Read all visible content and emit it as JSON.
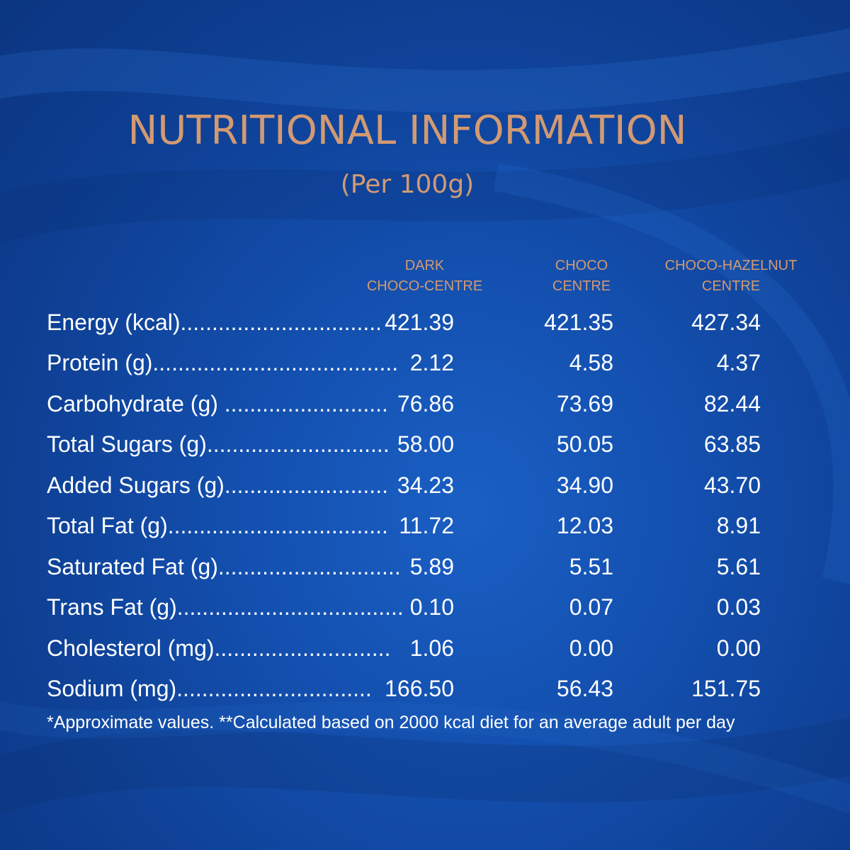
{
  "title": "NUTRITIONAL INFORMATION",
  "subtitle": "(Per 100g)",
  "columns": [
    {
      "line1": "DARK",
      "line2": "CHOCO-CENTRE"
    },
    {
      "line1": "CHOCO",
      "line2": "CENTRE"
    },
    {
      "line1": "CHOCO-HAZELNUT",
      "line2": "CENTRE"
    }
  ],
  "rows": [
    {
      "label": "Energy (kcal)................................",
      "v1": "421.39",
      "v2": "421.35",
      "v3": "427.34"
    },
    {
      "label": "Protein (g).......................................",
      "v1": "2.12",
      "v2": "4.58",
      "v3": "4.37"
    },
    {
      "label": "Carbohydrate (g) ...........................",
      "v1": "76.86",
      "v2": "73.69",
      "v3": "82.44"
    },
    {
      "label": "Total Sugars (g).............................",
      "v1": "58.00",
      "v2": "50.05",
      "v3": "63.85"
    },
    {
      "label": "Added Sugars (g)...........................",
      "v1": "34.23",
      "v2": "34.90",
      "v3": "43.70"
    },
    {
      "label": "Total Fat (g)...................................",
      "v1": "11.72",
      "v2": "12.03",
      "v3": "8.91"
    },
    {
      "label": "Saturated Fat (g).............................",
      "v1": "5.89",
      "v2": "5.51",
      "v3": "5.61"
    },
    {
      "label": "Trans Fat (g)....................................",
      "v1": "0.10",
      "v2": "0.07",
      "v3": "0.03"
    },
    {
      "label": "Cholesterol (mg)............................",
      "v1": "1.06",
      "v2": "0.00",
      "v3": "0.00"
    },
    {
      "label": "Sodium (mg)...............................",
      "v1": "166.50",
      "v2": "56.43",
      "v3": "151.75"
    }
  ],
  "footnote": "*Approximate values. **Calculated based on 2000 kcal diet for an average adult per day",
  "colors": {
    "accent": "#d39a72",
    "background": "#134fae",
    "text": "#ffffff"
  }
}
